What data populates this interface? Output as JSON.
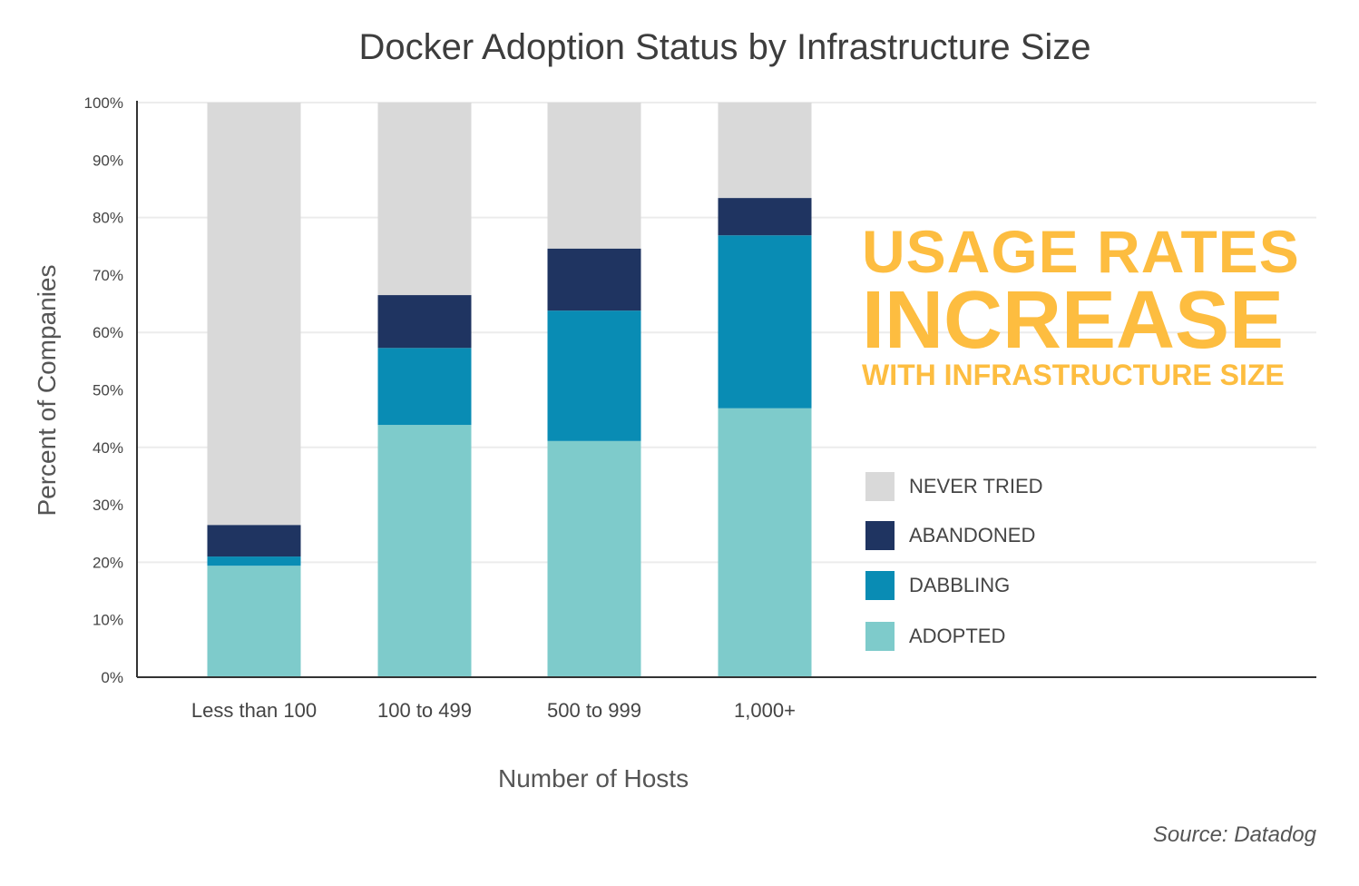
{
  "chart_data": {
    "type": "bar",
    "stacked": true,
    "title": "Docker Adoption Status by Infrastructure Size",
    "xlabel": "Number of Hosts",
    "ylabel": "Percent of Companies",
    "ylim": [
      0,
      100
    ],
    "yticks": [
      "0%",
      "10%",
      "20%",
      "30%",
      "40%",
      "50%",
      "60%",
      "70%",
      "80%",
      "90%",
      "100%"
    ],
    "grid": true,
    "legend_placement": "right",
    "categories": [
      "Less than 100",
      "100 to 499",
      "500 to 999",
      "1,000+"
    ],
    "series": [
      {
        "name": "ADOPTED",
        "color": "#7ecbcb",
        "values": [
          19.4,
          43.9,
          41.1,
          46.8
        ]
      },
      {
        "name": "DABBLING",
        "color": "#098cb4",
        "values": [
          1.6,
          13.4,
          22.7,
          30.1
        ]
      },
      {
        "name": "ABANDONED",
        "color": "#1f3461",
        "values": [
          5.5,
          9.2,
          10.8,
          6.5
        ]
      },
      {
        "name": "NEVER TRIED",
        "color": "#d9d9d9",
        "values": [
          73.5,
          33.5,
          25.4,
          16.6
        ]
      }
    ],
    "annotation": [
      "USAGE RATES",
      "INCREASE",
      "WITH INFRASTRUCTURE SIZE"
    ],
    "annotation_color": "#fdbd40",
    "source": "Source: Datadog"
  }
}
